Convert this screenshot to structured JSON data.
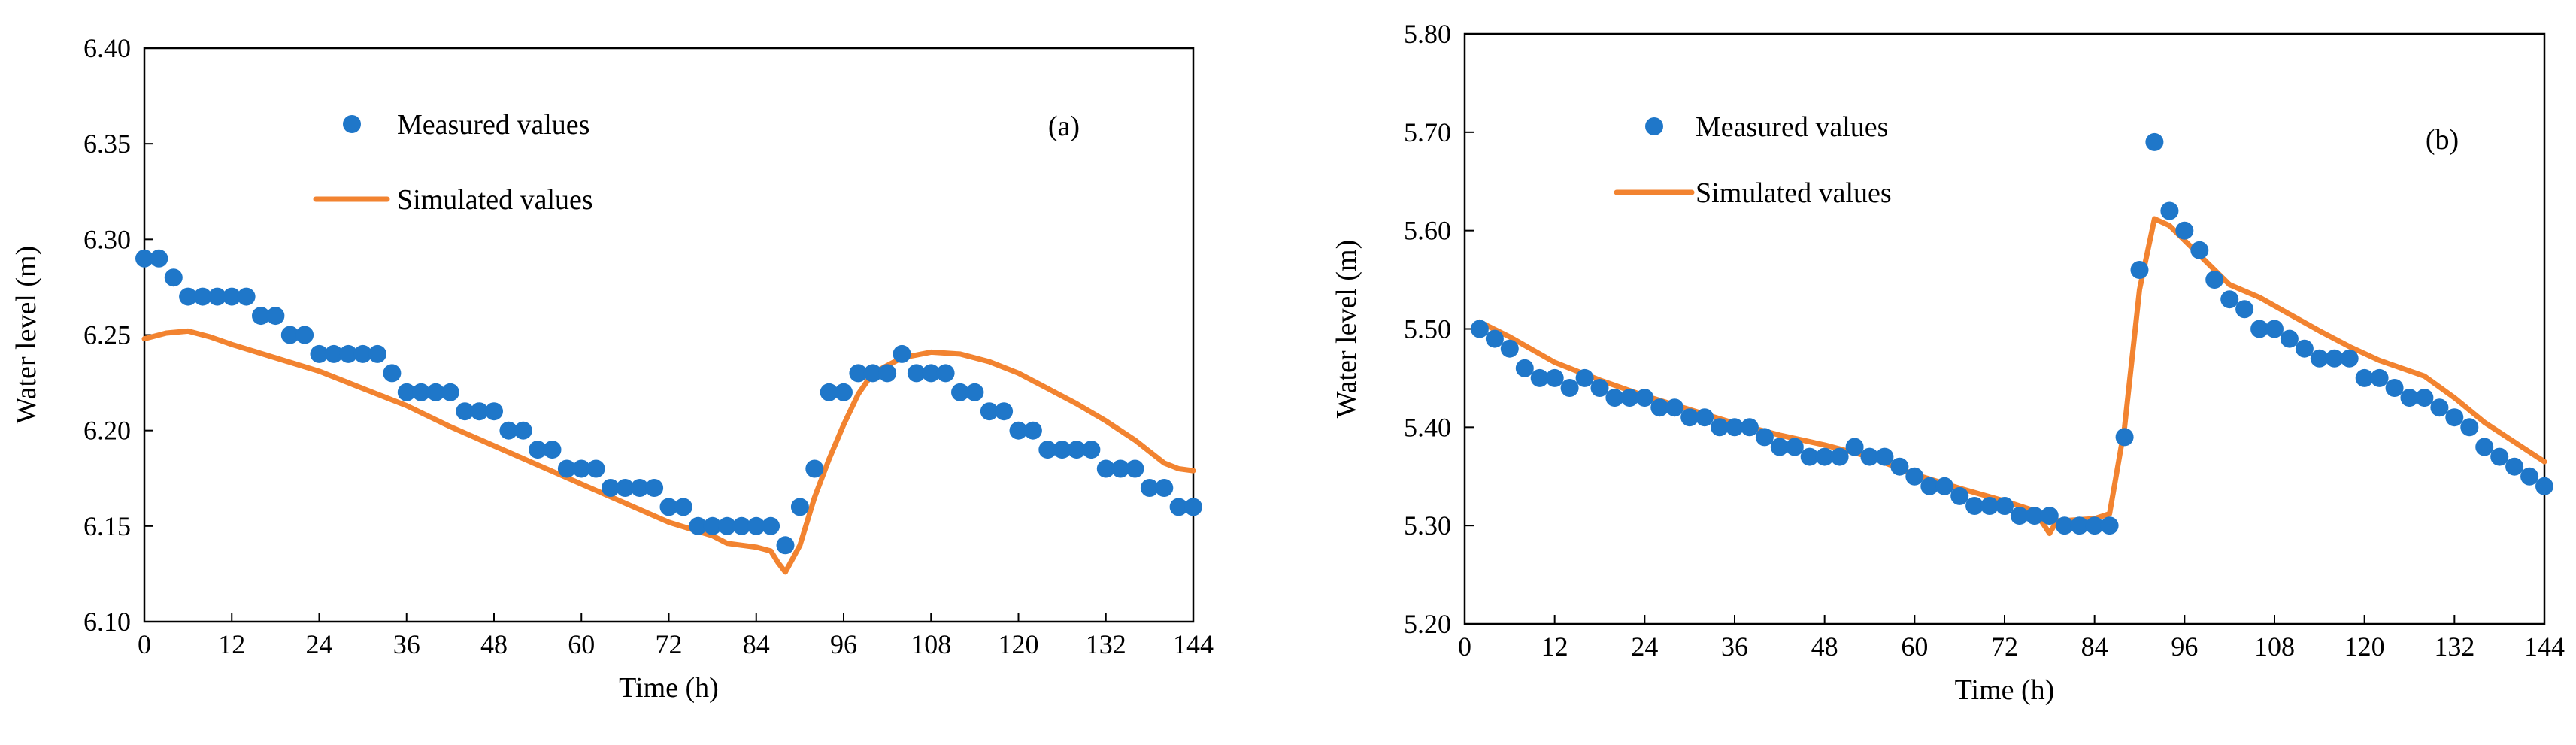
{
  "chart_data": [
    {
      "panel": "a",
      "type": "line",
      "label": "(a)",
      "xlabel": "Time (h)",
      "ylabel": "Water level (m)",
      "xlim": [
        0,
        144
      ],
      "ylim": [
        6.1,
        6.4
      ],
      "xticks": [
        0,
        12,
        24,
        36,
        48,
        60,
        72,
        84,
        96,
        108,
        120,
        132,
        144
      ],
      "yticks": [
        6.1,
        6.15,
        6.2,
        6.25,
        6.3,
        6.35,
        6.4
      ],
      "ytick_labels": [
        "6.10",
        "6.15",
        "6.20",
        "6.25",
        "6.30",
        "6.35",
        "6.40"
      ],
      "legend": {
        "measured": "Measured values",
        "simulated": "Simulated values"
      },
      "colors": {
        "measured": "#1f77c9",
        "simulated": "#f28330"
      },
      "series": [
        {
          "name": "Measured values",
          "kind": "scatter",
          "x": [
            0,
            2,
            4,
            6,
            8,
            10,
            12,
            14,
            16,
            18,
            20,
            22,
            24,
            26,
            28,
            30,
            32,
            34,
            36,
            38,
            40,
            42,
            44,
            46,
            48,
            50,
            52,
            54,
            56,
            58,
            60,
            62,
            64,
            66,
            68,
            70,
            72,
            74,
            76,
            78,
            80,
            82,
            84,
            86,
            88,
            90,
            92,
            94,
            96,
            98,
            100,
            102,
            104,
            106,
            108,
            110,
            112,
            114,
            116,
            118,
            120,
            122,
            124,
            126,
            128,
            130,
            132,
            134,
            136,
            138,
            140,
            142,
            144
          ],
          "y": [
            6.29,
            6.29,
            6.28,
            6.27,
            6.27,
            6.27,
            6.27,
            6.27,
            6.26,
            6.26,
            6.25,
            6.25,
            6.24,
            6.24,
            6.24,
            6.24,
            6.24,
            6.23,
            6.22,
            6.22,
            6.22,
            6.22,
            6.21,
            6.21,
            6.21,
            6.2,
            6.2,
            6.19,
            6.19,
            6.18,
            6.18,
            6.18,
            6.17,
            6.17,
            6.17,
            6.17,
            6.16,
            6.16,
            6.15,
            6.15,
            6.15,
            6.15,
            6.15,
            6.15,
            6.14,
            6.16,
            6.18,
            6.22,
            6.22,
            6.23,
            6.23,
            6.23,
            6.24,
            6.23,
            6.23,
            6.23,
            6.22,
            6.22,
            6.21,
            6.21,
            6.2,
            6.2,
            6.19,
            6.19,
            6.19,
            6.19,
            6.18,
            6.18,
            6.18,
            6.17,
            6.17,
            6.16,
            6.16
          ]
        },
        {
          "name": "Simulated values",
          "kind": "line",
          "x": [
            0,
            3,
            6,
            9,
            12,
            18,
            24,
            30,
            36,
            42,
            48,
            54,
            60,
            66,
            72,
            78,
            80,
            84,
            86,
            87,
            88,
            90,
            92,
            94,
            96,
            98,
            100,
            104,
            108,
            112,
            116,
            120,
            124,
            128,
            132,
            136,
            140,
            142,
            144
          ],
          "y": [
            6.248,
            6.251,
            6.252,
            6.249,
            6.245,
            6.238,
            6.231,
            6.222,
            6.213,
            6.202,
            6.192,
            6.182,
            6.172,
            6.162,
            6.152,
            6.145,
            6.141,
            6.139,
            6.137,
            6.131,
            6.126,
            6.14,
            6.165,
            6.185,
            6.203,
            6.219,
            6.23,
            6.238,
            6.241,
            6.24,
            6.236,
            6.23,
            6.222,
            6.214,
            6.205,
            6.195,
            6.183,
            6.18,
            6.179
          ]
        }
      ]
    },
    {
      "panel": "b",
      "type": "line",
      "label": "(b)",
      "xlabel": "Time (h)",
      "ylabel": "Water level (m)",
      "xlim": [
        0,
        144
      ],
      "ylim": [
        5.2,
        5.8
      ],
      "xticks": [
        0,
        12,
        24,
        36,
        48,
        60,
        72,
        84,
        96,
        108,
        120,
        132,
        144
      ],
      "yticks": [
        5.2,
        5.3,
        5.4,
        5.5,
        5.6,
        5.7,
        5.8
      ],
      "ytick_labels": [
        "5.20",
        "5.30",
        "5.40",
        "5.50",
        "5.60",
        "5.70",
        "5.80"
      ],
      "legend": {
        "measured": "Measured values",
        "simulated": "Simulated values"
      },
      "colors": {
        "measured": "#1f77c9",
        "simulated": "#f28330"
      },
      "series": [
        {
          "name": "Measured values",
          "kind": "scatter",
          "x": [
            2,
            4,
            6,
            8,
            10,
            12,
            14,
            16,
            18,
            20,
            22,
            24,
            26,
            28,
            30,
            32,
            34,
            36,
            38,
            40,
            42,
            44,
            46,
            48,
            50,
            52,
            54,
            56,
            58,
            60,
            62,
            64,
            66,
            68,
            70,
            72,
            74,
            76,
            78,
            80,
            82,
            84,
            86,
            88,
            90,
            92,
            94,
            96,
            98,
            100,
            102,
            104,
            106,
            108,
            110,
            112,
            114,
            116,
            118,
            120,
            122,
            124,
            126,
            128,
            130,
            132,
            134,
            136,
            138,
            140,
            142,
            144
          ],
          "y": [
            5.5,
            5.49,
            5.48,
            5.46,
            5.45,
            5.45,
            5.44,
            5.45,
            5.44,
            5.43,
            5.43,
            5.43,
            5.42,
            5.42,
            5.41,
            5.41,
            5.4,
            5.4,
            5.4,
            5.39,
            5.38,
            5.38,
            5.37,
            5.37,
            5.37,
            5.38,
            5.37,
            5.37,
            5.36,
            5.35,
            5.34,
            5.34,
            5.33,
            5.32,
            5.32,
            5.32,
            5.31,
            5.31,
            5.31,
            5.3,
            5.3,
            5.3,
            5.3,
            5.39,
            5.56,
            5.69,
            5.62,
            5.6,
            5.58,
            5.55,
            5.53,
            5.52,
            5.5,
            5.5,
            5.49,
            5.48,
            5.47,
            5.47,
            5.47,
            5.45,
            5.45,
            5.44,
            5.43,
            5.43,
            5.42,
            5.41,
            5.4,
            5.38,
            5.37,
            5.36,
            5.35,
            5.34
          ]
        },
        {
          "name": "Simulated values",
          "kind": "line",
          "x": [
            2,
            6,
            12,
            18,
            24,
            30,
            36,
            42,
            48,
            54,
            60,
            66,
            72,
            76,
            78,
            79,
            80,
            84,
            86,
            88,
            90,
            92,
            94,
            98,
            102,
            106,
            110,
            114,
            118,
            122,
            128,
            132,
            136,
            140,
            144
          ],
          "y": [
            5.507,
            5.492,
            5.466,
            5.448,
            5.432,
            5.418,
            5.404,
            5.392,
            5.382,
            5.37,
            5.352,
            5.338,
            5.325,
            5.315,
            5.292,
            5.305,
            5.305,
            5.307,
            5.312,
            5.4,
            5.54,
            5.612,
            5.605,
            5.575,
            5.545,
            5.532,
            5.515,
            5.498,
            5.482,
            5.468,
            5.452,
            5.43,
            5.405,
            5.385,
            5.365
          ]
        }
      ]
    }
  ]
}
